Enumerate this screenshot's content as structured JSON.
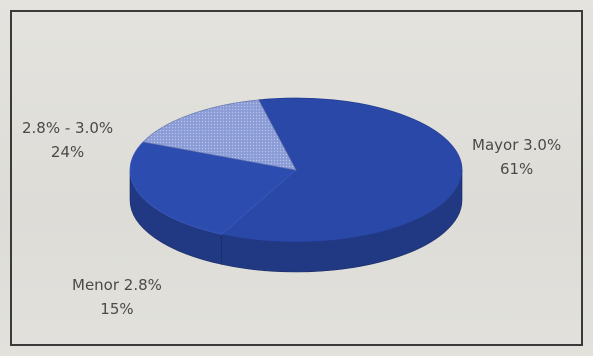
{
  "chart_data": {
    "type": "pie",
    "style": "3d-tilted",
    "title": "",
    "slices": [
      {
        "label": "Mayor 3.0%",
        "value": 61,
        "value_label": "61%",
        "color": "#2a48a8"
      },
      {
        "label": "2.8% - 3.0%",
        "value": 24,
        "value_label": "24%",
        "color": "#2a48a8"
      },
      {
        "label": "Menor 2.8%",
        "value": 15,
        "value_label": "15%",
        "color": "#7c8fd0"
      }
    ],
    "legend": "none",
    "labels": "outside"
  }
}
